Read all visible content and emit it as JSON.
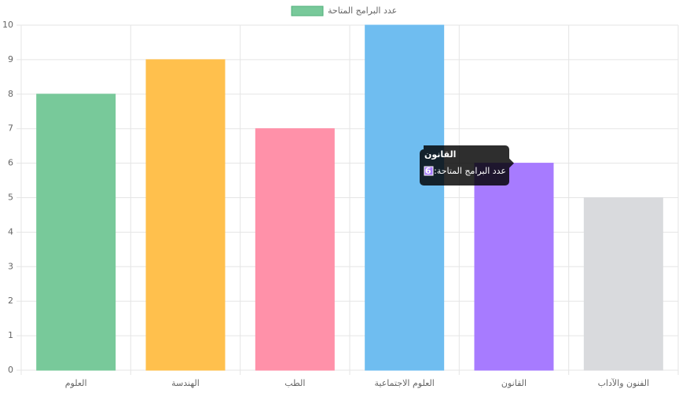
{
  "chart_data": {
    "type": "bar",
    "categories": [
      "العلوم",
      "الهندسة",
      "الطب",
      "العلوم الاجتماعية",
      "القانون",
      "الفنون والآداب"
    ],
    "series": [
      {
        "name": "عدد البرامج المتاحة",
        "colors": [
          "#78c99a",
          "#ffc04d",
          "#ff91a9",
          "#6fbdf0",
          "#a77bff",
          "#d9dadd"
        ],
        "values": [
          8,
          9,
          7,
          10,
          6,
          5
        ]
      }
    ],
    "ylim": [
      0,
      10
    ],
    "yticks": [
      0,
      1,
      2,
      3,
      4,
      5,
      6,
      7,
      8,
      9,
      10
    ],
    "grid": true,
    "legend": "top",
    "tooltip_index": 4
  }
}
